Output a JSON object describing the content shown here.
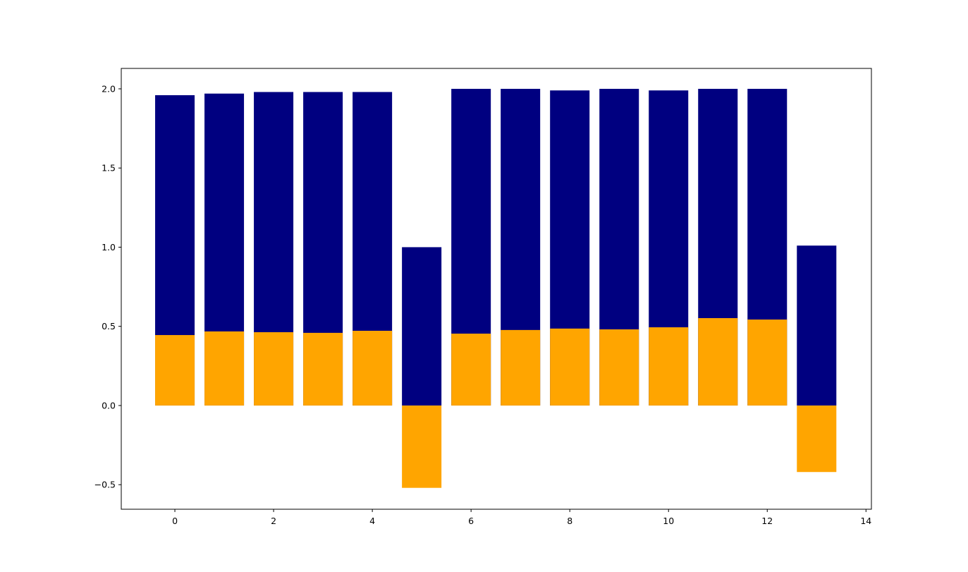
{
  "chart_data": {
    "type": "bar",
    "x": [
      0,
      1,
      2,
      3,
      4,
      5,
      6,
      7,
      8,
      9,
      10,
      11,
      12,
      13
    ],
    "series": [
      {
        "color": "#000080",
        "values": [
          1.96,
          1.97,
          1.98,
          1.98,
          1.98,
          1.0,
          2.0,
          2.0,
          1.99,
          2.0,
          1.99,
          2.0,
          2.0,
          1.01
        ]
      },
      {
        "color": "#ffa500",
        "values": [
          0.445,
          0.468,
          0.463,
          0.459,
          0.472,
          -0.52,
          0.454,
          0.477,
          0.486,
          0.481,
          0.494,
          0.552,
          0.543,
          -0.42
        ]
      }
    ],
    "xlim": [
      -1.086,
      14.11
    ],
    "xticks": [
      0,
      2,
      4,
      6,
      8,
      10,
      12,
      14
    ],
    "ylim": [
      -0.655,
      2.129
    ],
    "yticks": [
      {
        "value": -0.5,
        "label": "−0.5"
      },
      {
        "value": 0,
        "label": "0.0"
      },
      {
        "value": 0.5,
        "label": "0.5"
      },
      {
        "value": 1,
        "label": "1.0"
      },
      {
        "value": 1.5,
        "label": "1.5"
      },
      {
        "value": 2,
        "label": "2.0"
      }
    ]
  }
}
